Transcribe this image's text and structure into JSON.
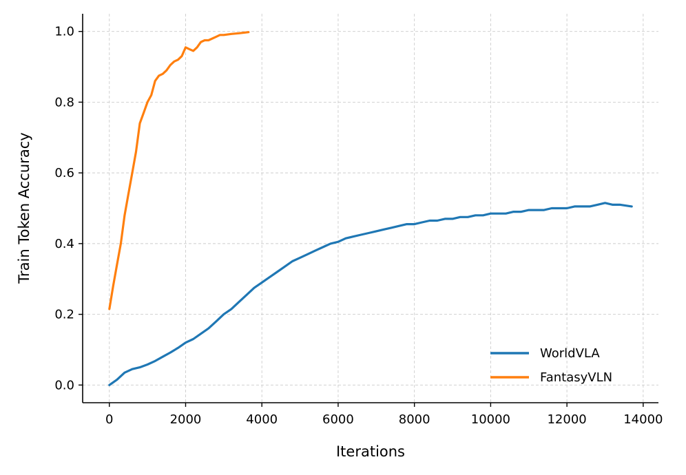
{
  "chart_data": {
    "type": "line",
    "title": "",
    "xlabel": "Iterations",
    "ylabel": "Train Token Accuracy",
    "xlim": [
      -700,
      14400
    ],
    "ylim": [
      -0.05,
      1.05
    ],
    "xticks": [
      0,
      2000,
      4000,
      6000,
      8000,
      10000,
      12000,
      14000
    ],
    "yticks": [
      0.0,
      0.2,
      0.4,
      0.6,
      0.8,
      1.0
    ],
    "xtick_labels": [
      "0",
      "2000",
      "4000",
      "6000",
      "8000",
      "10000",
      "12000",
      "14000"
    ],
    "ytick_labels": [
      "0.0",
      "0.2",
      "0.4",
      "0.6",
      "0.8",
      "1.0"
    ],
    "grid": true,
    "legend_position": "bottom-right",
    "series": [
      {
        "name": "WorldVLA",
        "color": "#1f77b4",
        "x": [
          0,
          200,
          400,
          600,
          800,
          1000,
          1200,
          1400,
          1600,
          1800,
          2000,
          2200,
          2400,
          2600,
          2800,
          3000,
          3200,
          3400,
          3600,
          3800,
          4000,
          4200,
          4400,
          4600,
          4800,
          5000,
          5200,
          5400,
          5600,
          5800,
          6000,
          6200,
          6400,
          6600,
          6800,
          7000,
          7200,
          7400,
          7600,
          7800,
          8000,
          8200,
          8400,
          8600,
          8800,
          9000,
          9200,
          9400,
          9600,
          9800,
          10000,
          10200,
          10400,
          10600,
          10800,
          11000,
          11200,
          11400,
          11600,
          11800,
          12000,
          12200,
          12400,
          12600,
          12800,
          13000,
          13200,
          13400,
          13700
        ],
        "y": [
          0.0,
          0.015,
          0.035,
          0.045,
          0.05,
          0.058,
          0.068,
          0.08,
          0.092,
          0.105,
          0.12,
          0.13,
          0.145,
          0.16,
          0.18,
          0.2,
          0.215,
          0.235,
          0.255,
          0.275,
          0.29,
          0.305,
          0.32,
          0.335,
          0.35,
          0.36,
          0.37,
          0.38,
          0.39,
          0.4,
          0.405,
          0.415,
          0.42,
          0.425,
          0.43,
          0.435,
          0.44,
          0.445,
          0.45,
          0.455,
          0.455,
          0.46,
          0.465,
          0.465,
          0.47,
          0.47,
          0.475,
          0.475,
          0.48,
          0.48,
          0.485,
          0.485,
          0.485,
          0.49,
          0.49,
          0.495,
          0.495,
          0.495,
          0.5,
          0.5,
          0.5,
          0.505,
          0.505,
          0.505,
          0.51,
          0.515,
          0.51,
          0.51,
          0.505
        ]
      },
      {
        "name": "FantasyVLN",
        "color": "#ff7f0e",
        "x": [
          0,
          100,
          200,
          300,
          400,
          500,
          600,
          700,
          800,
          900,
          1000,
          1100,
          1200,
          1300,
          1400,
          1500,
          1600,
          1700,
          1800,
          1900,
          2000,
          2100,
          2200,
          2300,
          2400,
          2500,
          2600,
          2700,
          2800,
          2900,
          3000,
          3200,
          3400,
          3650
        ],
        "y": [
          0.215,
          0.28,
          0.34,
          0.4,
          0.48,
          0.54,
          0.6,
          0.66,
          0.74,
          0.77,
          0.8,
          0.82,
          0.86,
          0.875,
          0.88,
          0.89,
          0.905,
          0.915,
          0.92,
          0.93,
          0.955,
          0.95,
          0.945,
          0.955,
          0.97,
          0.975,
          0.975,
          0.98,
          0.985,
          0.99,
          0.99,
          0.993,
          0.995,
          0.998
        ]
      }
    ]
  }
}
